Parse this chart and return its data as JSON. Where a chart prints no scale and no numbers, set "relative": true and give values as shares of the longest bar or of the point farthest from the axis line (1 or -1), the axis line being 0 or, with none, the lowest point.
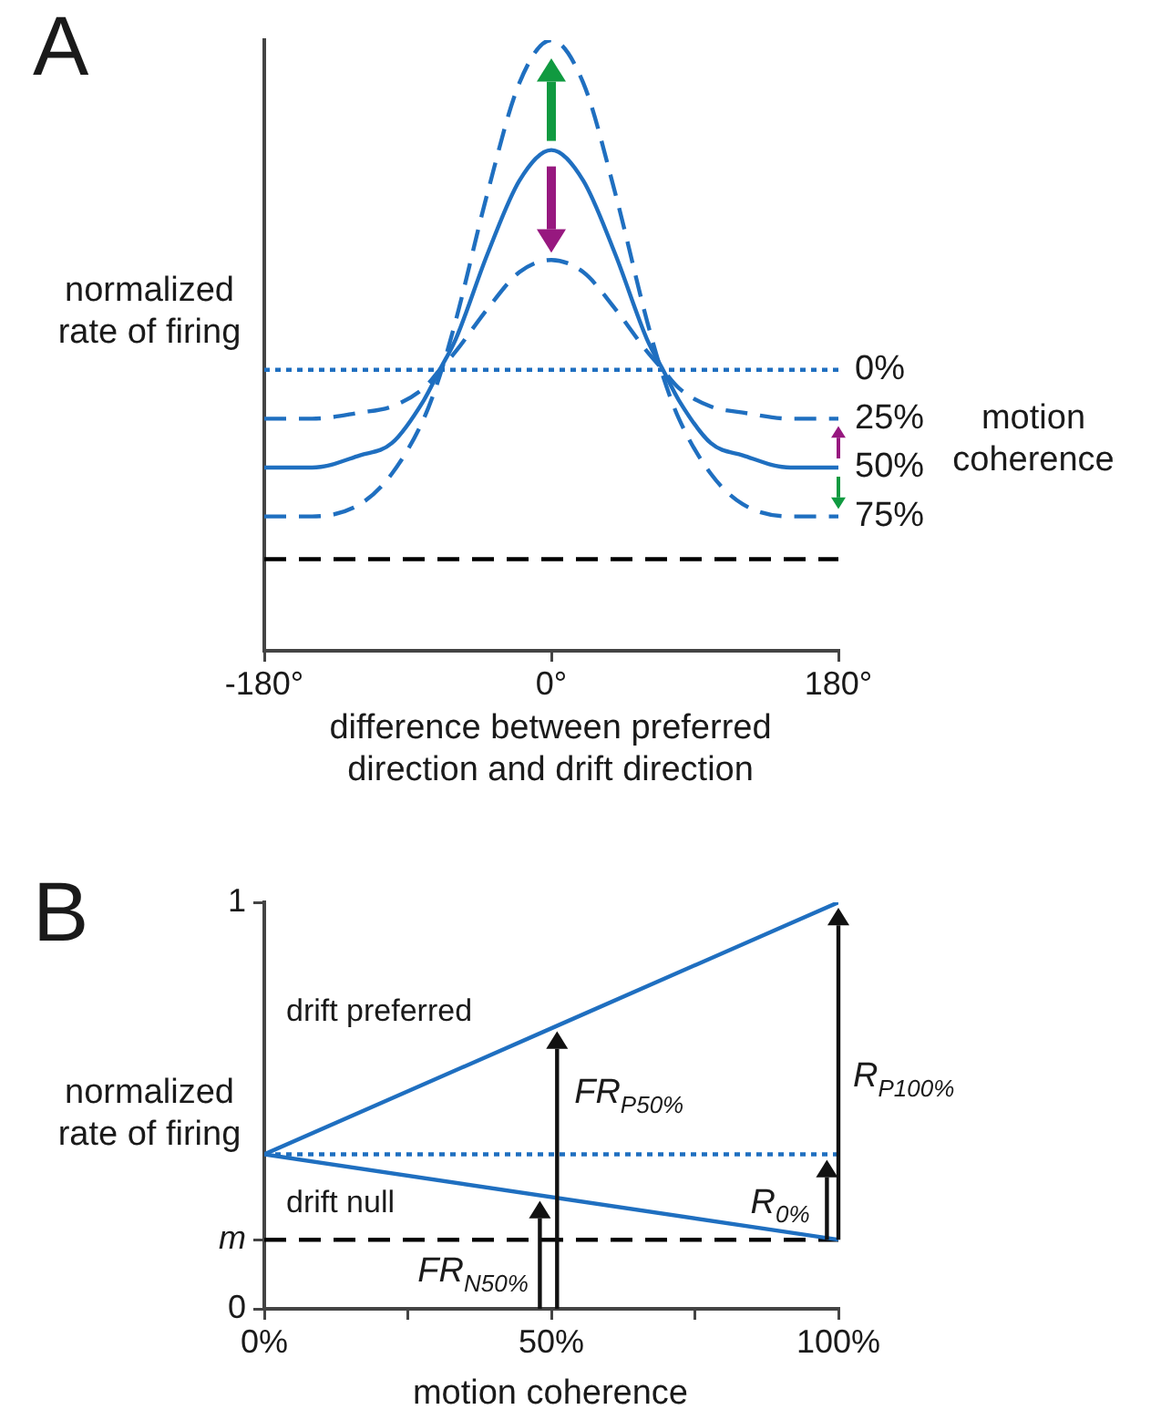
{
  "chart_data": [
    {
      "type": "line",
      "title": "A",
      "xlabel": "difference between preferred direction and drift direction",
      "ylabel": "normalized rate of firing",
      "legend_title": "motion coherence",
      "relative": true,
      "xlim": [
        -180,
        180
      ],
      "xticks": [
        {
          "value": -180,
          "label": "-180°"
        },
        {
          "value": 0,
          "label": "0°"
        },
        {
          "value": 180,
          "label": "180°"
        }
      ],
      "tick_labels": "x",
      "grid": false,
      "legend": false,
      "marker": "none",
      "x": [
        -180,
        -150,
        -120,
        -100,
        -80,
        -70,
        -60,
        -40,
        -20,
        0,
        20,
        40,
        60,
        70,
        80,
        100,
        120,
        150,
        180
      ],
      "series": [
        {
          "name": "0%",
          "color": "#1f6fc0",
          "line_style": "dotted",
          "values": [
            0.46,
            0.46,
            0.46,
            0.46,
            0.46,
            0.46,
            0.46,
            0.46,
            0.46,
            0.46,
            0.46,
            0.46,
            0.46,
            0.46,
            0.46,
            0.46,
            0.46,
            0.46,
            0.46
          ]
        },
        {
          "name": "25%",
          "color": "#1f6fc0",
          "line_style": "dashed",
          "values": [
            0.38,
            0.38,
            0.39,
            0.4,
            0.43,
            0.46,
            0.49,
            0.56,
            0.62,
            0.64,
            0.62,
            0.56,
            0.49,
            0.46,
            0.43,
            0.4,
            0.39,
            0.38,
            0.38
          ]
        },
        {
          "name": "50%",
          "color": "#1f6fc0",
          "line_style": "solid",
          "values": [
            0.3,
            0.3,
            0.32,
            0.34,
            0.41,
            0.46,
            0.51,
            0.65,
            0.77,
            0.82,
            0.77,
            0.65,
            0.51,
            0.46,
            0.41,
            0.34,
            0.32,
            0.3,
            0.3
          ]
        },
        {
          "name": "75%",
          "color": "#1f6fc0",
          "line_style": "dashed",
          "values": [
            0.22,
            0.22,
            0.24,
            0.29,
            0.38,
            0.45,
            0.54,
            0.75,
            0.93,
            1.0,
            0.93,
            0.75,
            0.54,
            0.45,
            0.38,
            0.29,
            0.24,
            0.22,
            0.22
          ]
        },
        {
          "color": "#000000",
          "line_style": "dashed",
          "values": [
            0.15,
            0.15,
            0.15,
            0.15,
            0.15,
            0.15,
            0.15,
            0.15,
            0.15,
            0.15,
            0.15,
            0.15,
            0.15,
            0.15,
            0.15,
            0.15,
            0.15,
            0.15,
            0.15
          ]
        }
      ]
    },
    {
      "type": "line",
      "title": "B",
      "xlabel": "motion coherence",
      "ylabel": "normalized rate of firing",
      "xlim": [
        0,
        100
      ],
      "xticks": [
        {
          "value": 0,
          "label": "0%"
        },
        {
          "value": 25,
          "label": null
        },
        {
          "value": 50,
          "label": "50%"
        },
        {
          "value": 75,
          "label": null
        },
        {
          "value": 100,
          "label": "100%"
        }
      ],
      "ylim": [
        0,
        1
      ],
      "yticks": [
        0,
        {
          "value": 0.17,
          "label": "m"
        },
        1
      ],
      "grid": false,
      "legend": false,
      "marker": "none",
      "x": [
        0,
        100
      ],
      "series": [
        {
          "name": "drift preferred",
          "color": "#1f6fc0",
          "line_style": "solid",
          "values": [
            0.38,
            1
          ]
        },
        {
          "name": "drift null",
          "color": "#1f6fc0",
          "line_style": "solid",
          "values": [
            0.38,
            0.17
          ]
        },
        {
          "color": "#1f6fc0",
          "line_style": "dotted",
          "values": [
            0.38,
            0.38
          ]
        },
        {
          "color": "#000000",
          "line_style": "dashed",
          "values": [
            0.17,
            0.17
          ]
        }
      ],
      "annotations": [
        "FR$_{P50%}$",
        "R$_{P100%}$",
        "R$_{0%}$",
        "FR$_{N50%}$"
      ]
    }
  ]
}
